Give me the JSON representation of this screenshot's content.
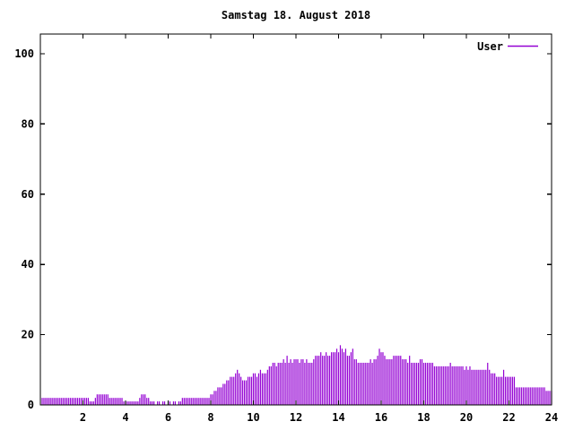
{
  "title": "Samstag 18. August 2018",
  "legend": {
    "series_label": "User"
  },
  "colors": {
    "series": "#9400d3",
    "axis": "#000000",
    "text": "#000000",
    "background": "#ffffff"
  },
  "chart_data": {
    "type": "bar",
    "title": "Samstag 18. August 2018",
    "xlabel": "",
    "ylabel": "",
    "xlim": [
      0,
      24
    ],
    "ylim": [
      0,
      105.6
    ],
    "x_ticks": [
      2,
      4,
      6,
      8,
      10,
      12,
      14,
      16,
      18,
      20,
      22,
      24
    ],
    "y_ticks": [
      0,
      20,
      40,
      60,
      80,
      100
    ],
    "grid": false,
    "legend_position": "top-right-inside",
    "series": [
      {
        "name": "User",
        "style": "impulses",
        "interval_minutes": 5,
        "start_minute": 5,
        "values": [
          2,
          2,
          2,
          2,
          2,
          2,
          2,
          2,
          2,
          2,
          2,
          2,
          2,
          2,
          2,
          2,
          2,
          2,
          2,
          2,
          2,
          2,
          2,
          2,
          2,
          2,
          2,
          1,
          1,
          1,
          2,
          3,
          3,
          3,
          3,
          3,
          3,
          3,
          2,
          2,
          2,
          2,
          2,
          2,
          2,
          2,
          1,
          1,
          1,
          1,
          1,
          1,
          1,
          1,
          1,
          2,
          3,
          3,
          3,
          2,
          2,
          1,
          1,
          1,
          0,
          1,
          1,
          0,
          1,
          1,
          0,
          1,
          1,
          0,
          1,
          1,
          0,
          1,
          1,
          2,
          2,
          2,
          2,
          2,
          2,
          2,
          2,
          2,
          2,
          2,
          2,
          2,
          2,
          2,
          2,
          3,
          3,
          4,
          4,
          5,
          5,
          5,
          6,
          6,
          7,
          7,
          8,
          8,
          8,
          9,
          10,
          9,
          8,
          7,
          7,
          7,
          8,
          8,
          8,
          9,
          9,
          8,
          9,
          10,
          9,
          9,
          9,
          10,
          11,
          11,
          12,
          12,
          11,
          12,
          12,
          12,
          13,
          12,
          14,
          12,
          13,
          12,
          13,
          13,
          13,
          12,
          13,
          13,
          12,
          13,
          12,
          12,
          12,
          13,
          14,
          14,
          14,
          15,
          14,
          14,
          15,
          14,
          14,
          15,
          15,
          15,
          16,
          15,
          17,
          16,
          15,
          16,
          14,
          14,
          15,
          16,
          13,
          13,
          12,
          12,
          12,
          12,
          12,
          12,
          12,
          13,
          12,
          13,
          13,
          14,
          16,
          15,
          15,
          14,
          13,
          13,
          13,
          13,
          14,
          14,
          14,
          14,
          14,
          13,
          13,
          13,
          12,
          14,
          12,
          12,
          12,
          12,
          12,
          13,
          13,
          12,
          12,
          12,
          12,
          12,
          12,
          11,
          11,
          11,
          11,
          11,
          11,
          11,
          11,
          11,
          12,
          11,
          11,
          11,
          11,
          11,
          11,
          11,
          10,
          11,
          10,
          11,
          10,
          10,
          10,
          10,
          10,
          10,
          10,
          10,
          10,
          12,
          10,
          9,
          9,
          9,
          8,
          8,
          8,
          8,
          10,
          8,
          8,
          8,
          8,
          8,
          8,
          5,
          5,
          5,
          5,
          5,
          5,
          5,
          5,
          5,
          5,
          5,
          5,
          5,
          5,
          5,
          5,
          5,
          4,
          4,
          4,
          4
        ]
      }
    ]
  }
}
